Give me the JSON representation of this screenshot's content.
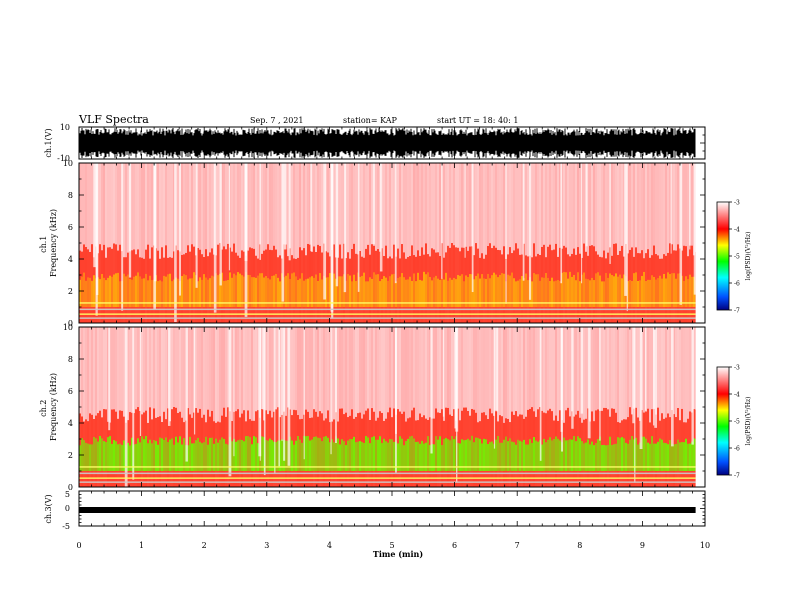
{
  "header": {
    "title": "VLF Spectra",
    "date": "Sep. 7 , 2021",
    "station": "station= KAP",
    "start": "start  UT =   18: 40: 1"
  },
  "chart_data": [
    {
      "type": "line",
      "panel": "ch1-waveform",
      "ylabel": "ch.1(V)",
      "ylim": [
        -10,
        10
      ],
      "yticks": [
        "10",
        "-10"
      ],
      "xlim": [
        0,
        10
      ],
      "color": "#000000"
    },
    {
      "type": "heatmap",
      "panel": "ch1-spectrogram",
      "ylabel": "ch.1\nFrequency  (kHz)",
      "ylim": [
        0,
        10
      ],
      "yticks": [
        "0",
        "2",
        "4",
        "6",
        "8",
        "10"
      ],
      "xlim": [
        0,
        9.85
      ],
      "colorbar": {
        "label": "log(PSD)(V²/Hz)",
        "range": [
          -7,
          -3
        ],
        "ticks": [
          "-3",
          "-4",
          "-5",
          "-6",
          "-7"
        ],
        "colors": [
          "#000080",
          "#0050ff",
          "#00ffff",
          "#00ff00",
          "#ffff00",
          "#ff0000",
          "#ffffff"
        ]
      }
    },
    {
      "type": "heatmap",
      "panel": "ch2-spectrogram",
      "ylabel": "ch.2\nFrequency  (kHz)",
      "ylim": [
        0,
        10
      ],
      "yticks": [
        "0",
        "2",
        "4",
        "6",
        "8",
        "10"
      ],
      "xlim": [
        0,
        9.85
      ],
      "colorbar": {
        "label": "log(PSD)(V²/Hz)",
        "range": [
          -7,
          -3
        ],
        "ticks": [
          "-3",
          "-4",
          "-5",
          "-6",
          "-7"
        ],
        "colors": [
          "#000080",
          "#0050ff",
          "#00ffff",
          "#00ff00",
          "#ffff00",
          "#ff0000",
          "#ffffff"
        ]
      }
    },
    {
      "type": "line",
      "panel": "ch3-waveform",
      "ylabel": "ch.3(V)",
      "ylim": [
        -5,
        5
      ],
      "yticks": [
        "5",
        "0",
        "-5"
      ],
      "xlim": [
        0,
        10
      ],
      "color": "#000000"
    }
  ],
  "xaxis": {
    "label": "Time  (min)",
    "ticks": [
      "0",
      "1",
      "2",
      "3",
      "4",
      "5",
      "6",
      "7",
      "8",
      "9",
      "10"
    ],
    "range": [
      0,
      10
    ]
  }
}
